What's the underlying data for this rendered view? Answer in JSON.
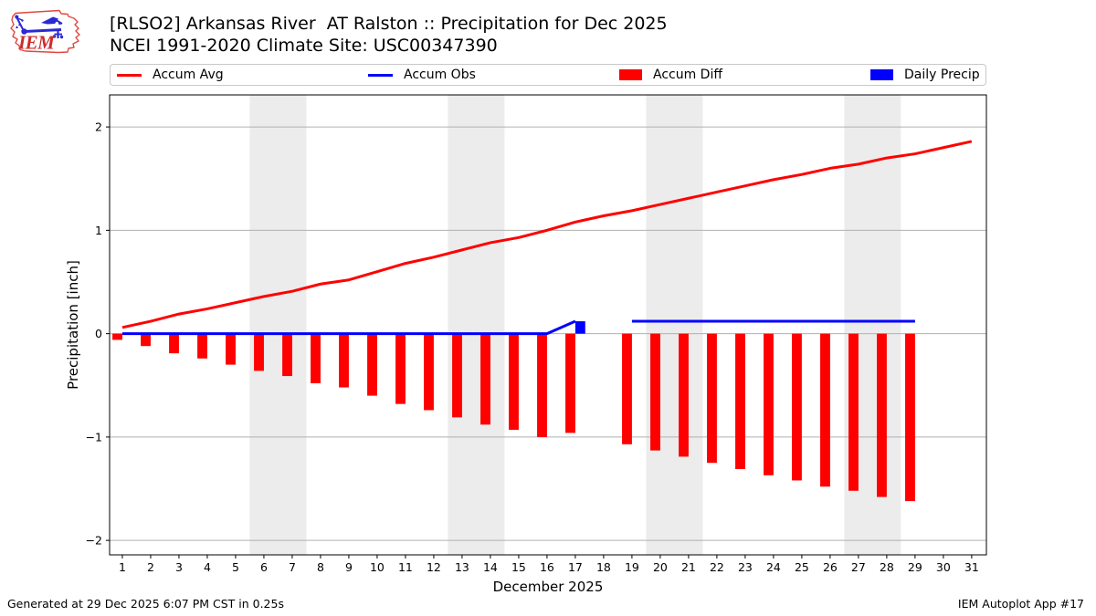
{
  "header": {
    "title": "[RLSO2] Arkansas River  AT Ralston :: Precipitation for Dec 2025",
    "subtitle": "NCEI 1991-2020 Climate Site: USC00347390",
    "logo_text": "IEM"
  },
  "legend": {
    "items": [
      {
        "label": "Accum Avg",
        "swatch": "line",
        "color": "#ff0000"
      },
      {
        "label": "Accum Obs",
        "swatch": "line",
        "color": "#0000ff"
      },
      {
        "label": "Accum Diff",
        "swatch": "box",
        "color": "#ff0000"
      },
      {
        "label": "Daily Precip",
        "swatch": "box",
        "color": "#0000ff"
      }
    ]
  },
  "footer": {
    "left": "Generated at 29 Dec 2025 6:07 PM CST in 0.25s",
    "right": "IEM Autoplot App #17"
  },
  "chart_data": {
    "type": "line+bar",
    "title": "[RLSO2] Arkansas River  AT Ralston :: Precipitation for Dec 2025",
    "subtitle": "NCEI 1991-2020 Climate Site: USC00347390",
    "xlabel": "December 2025",
    "ylabel": "Precipitation [inch]",
    "xlim": [
      0.55,
      31.52
    ],
    "ylim": [
      -2.14,
      2.31
    ],
    "yticks": [
      -2,
      -1,
      0,
      1,
      2
    ],
    "ytick_labels": [
      "−2",
      "−1",
      "0",
      "1",
      "2"
    ],
    "x": [
      1,
      2,
      3,
      4,
      5,
      6,
      7,
      8,
      9,
      10,
      11,
      12,
      13,
      14,
      15,
      16,
      17,
      18,
      19,
      20,
      21,
      22,
      23,
      24,
      25,
      26,
      27,
      28,
      29,
      30,
      31
    ],
    "grid_color": "#b0b0b0",
    "band_color": "#ececec",
    "weekend_bands": [
      [
        5.5,
        7.5
      ],
      [
        12.5,
        14.5
      ],
      [
        19.5,
        21.5
      ],
      [
        26.5,
        28.5
      ]
    ],
    "bar_width_days": 0.35,
    "legend_position": "top",
    "series": [
      {
        "name": "Accum Avg",
        "type": "line",
        "color": "#ff0000",
        "values": [
          0.06,
          0.12,
          0.19,
          0.24,
          0.3,
          0.36,
          0.41,
          0.48,
          0.52,
          0.6,
          0.68,
          0.74,
          0.81,
          0.88,
          0.93,
          1.0,
          1.08,
          1.14,
          1.19,
          1.25,
          1.31,
          1.37,
          1.43,
          1.49,
          1.54,
          1.6,
          1.64,
          1.7,
          1.74,
          1.8,
          1.86
        ]
      },
      {
        "name": "Accum Obs",
        "type": "line",
        "color": "#0000ff",
        "values": [
          0,
          0,
          0,
          0,
          0,
          0,
          0,
          0,
          0,
          0,
          0,
          0,
          0,
          0,
          0,
          0,
          0.12,
          null,
          0.12,
          0.12,
          0.12,
          0.12,
          0.12,
          0.12,
          0.12,
          0.12,
          0.12,
          0.12,
          0.12,
          null,
          null
        ]
      },
      {
        "name": "Accum Diff",
        "type": "bar",
        "color": "#ff0000",
        "offset_days": -0.175,
        "values": [
          -0.06,
          -0.12,
          -0.19,
          -0.24,
          -0.3,
          -0.36,
          -0.41,
          -0.48,
          -0.52,
          -0.6,
          -0.68,
          -0.74,
          -0.81,
          -0.88,
          -0.93,
          -1.0,
          -0.96,
          null,
          -1.07,
          -1.13,
          -1.19,
          -1.25,
          -1.31,
          -1.37,
          -1.42,
          -1.48,
          -1.52,
          -1.58,
          -1.62,
          null,
          null
        ]
      },
      {
        "name": "Daily Precip",
        "type": "bar",
        "color": "#0000ff",
        "offset_days": 0.175,
        "values": [
          null,
          null,
          null,
          null,
          null,
          null,
          null,
          null,
          null,
          null,
          null,
          null,
          null,
          null,
          null,
          null,
          0.12,
          null,
          null,
          null,
          null,
          null,
          null,
          null,
          null,
          null,
          null,
          null,
          null,
          null,
          null
        ]
      }
    ]
  }
}
